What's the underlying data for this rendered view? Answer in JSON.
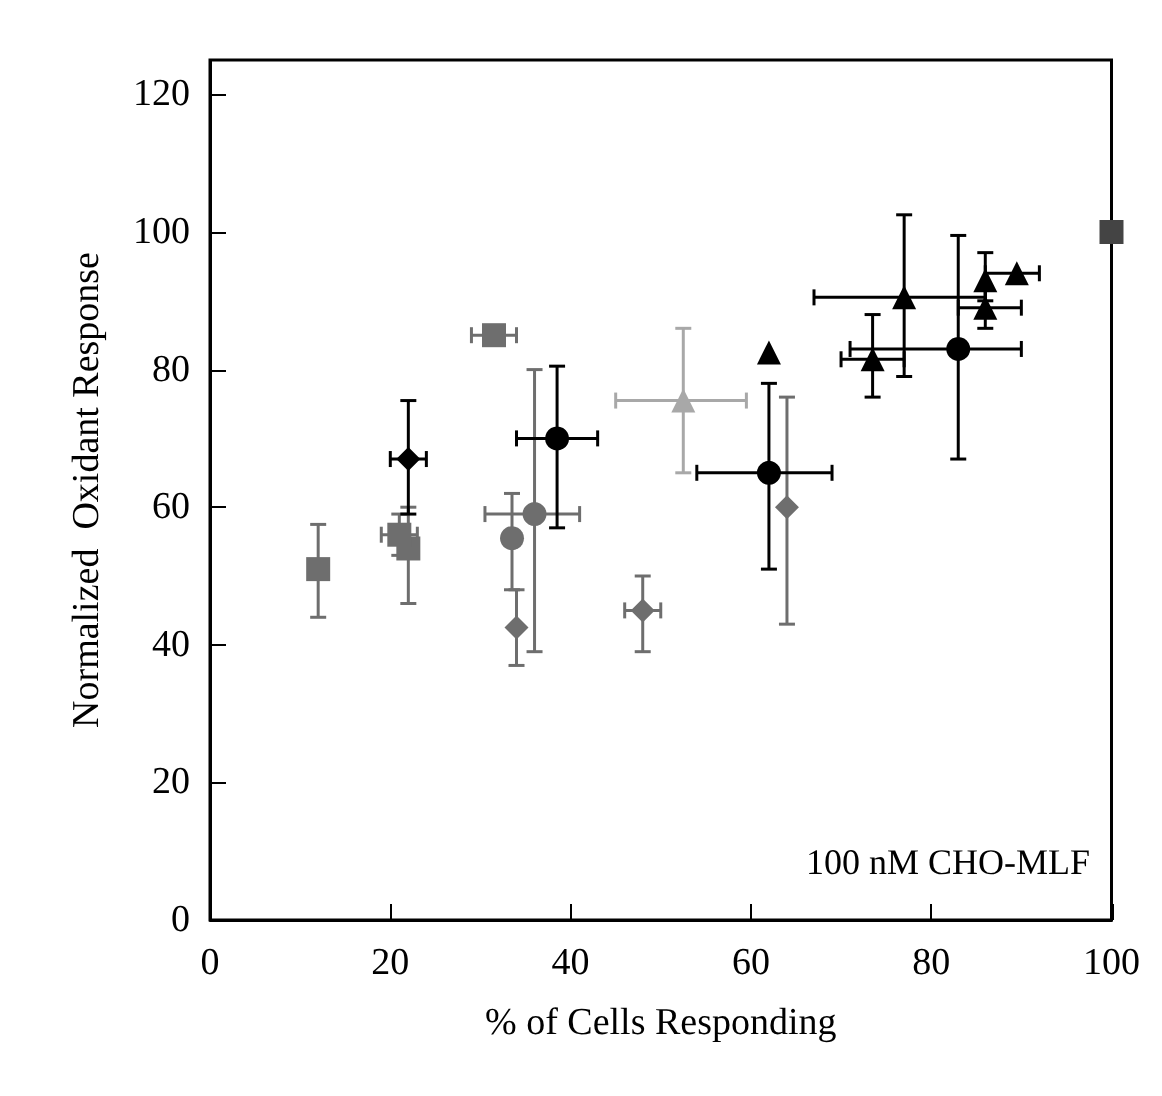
{
  "chart_data": {
    "type": "scatter",
    "xlabel": "% of Cells Responding",
    "ylabel": "Normalized  Oxidant Response",
    "xlim": [
      0,
      100
    ],
    "xticks": [
      0,
      20,
      40,
      60,
      80,
      100
    ],
    "ylim": [
      0,
      125
    ],
    "yticks": [
      0,
      20,
      40,
      60,
      80,
      100,
      120
    ],
    "annotations": [
      "100 nM CHO-MLF"
    ],
    "series": [
      {
        "color": "#6e6e6e",
        "marker": "square",
        "x": [
          12,
          22,
          21,
          31.5
        ],
        "values": [
          51,
          54,
          56,
          85
        ],
        "errors": [
          [
            44,
            57.5
          ],
          [
            46,
            60
          ],
          [
            53,
            59
          ],
          null
        ],
        "xerrors": [
          [
            11,
            13
          ],
          [
            21,
            23
          ],
          [
            19,
            23
          ],
          [
            29,
            34
          ]
        ]
      },
      {
        "color": "#444444",
        "marker": "square",
        "x": [
          100
        ],
        "values": [
          100
        ]
      },
      {
        "color": "#000000",
        "marker": "diamond",
        "x": [
          22
        ],
        "values": [
          67
        ],
        "errors": [
          [
            59,
            75.5
          ]
        ],
        "xerrors": [
          [
            20,
            24
          ]
        ]
      },
      {
        "color": "#6e6e6e",
        "marker": "diamond",
        "x": [
          34,
          48,
          64
        ],
        "values": [
          42.5,
          45,
          60
        ],
        "errors": [
          [
            37,
            48
          ],
          [
            39,
            50
          ],
          [
            43,
            76
          ]
        ],
        "xerrors": [
          null,
          [
            46,
            50
          ],
          null
        ]
      },
      {
        "color": "#6e6e6e",
        "marker": "circle",
        "x": [
          33.5,
          36
        ],
        "values": [
          55.5,
          59
        ],
        "errors": [
          [
            48,
            62
          ],
          [
            39,
            80
          ]
        ],
        "xerrors": [
          null,
          [
            30.5,
            41
          ]
        ]
      },
      {
        "color": "#000000",
        "marker": "circle",
        "x": [
          38.5,
          62,
          83
        ],
        "values": [
          70,
          65,
          83
        ],
        "errors": [
          [
            57,
            80.5
          ],
          [
            51,
            78
          ],
          [
            67,
            99.5
          ]
        ],
        "xerrors": [
          [
            34,
            43
          ],
          [
            54,
            69
          ],
          [
            71,
            90
          ]
        ]
      },
      {
        "color": "#a8a8a8",
        "marker": "triangle",
        "x": [
          52.5
        ],
        "values": [
          75.5
        ],
        "errors": [
          [
            65,
            86
          ]
        ],
        "xerrors": [
          [
            45,
            59.5
          ]
        ]
      },
      {
        "color": "#000000",
        "marker": "triangle",
        "x": [
          62,
          73.5,
          86,
          77,
          86,
          89.5
        ],
        "values": [
          82.5,
          81.5,
          93,
          90.5,
          89,
          94
        ],
        "errors": [
          null,
          [
            76,
            88
          ],
          [
            90,
            97
          ],
          [
            79,
            102.5
          ],
          [
            86,
            92
          ],
          null
        ],
        "xerrors": [
          null,
          [
            70,
            77
          ],
          null,
          [
            67,
            86
          ],
          [
            83,
            90
          ],
          [
            86,
            92
          ]
        ]
      }
    ]
  }
}
